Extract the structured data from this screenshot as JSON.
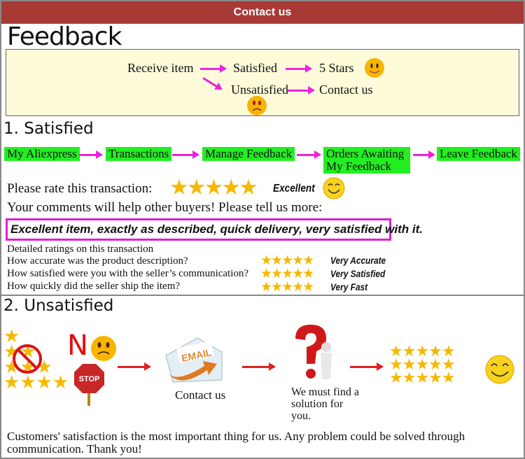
{
  "header": {
    "title": "Contact us"
  },
  "title": "Feedback",
  "flow": {
    "receive": "Receive item",
    "satisfied": "Satisfied",
    "five_stars": "5 Stars",
    "unsatisfied": "Unsatisfied",
    "contact": "Contact us"
  },
  "section1": {
    "title": "1. Satisfied",
    "steps": [
      "My Aliexpress",
      "Transactions",
      "Manage Feedback",
      "Orders Awaiting My Feedback",
      "Leave Feedback"
    ],
    "rate_label": "Please rate this transaction:",
    "rating": 5,
    "rating_text": "Excellent",
    "comments_prompt": "Your comments will help other buyers! Please tell us more:",
    "comment": "Excellent item, exactly as described, quick delivery, very satisfied with it.",
    "detailed_title": "Detailed ratings on this transaction",
    "detailed": [
      {
        "q": "How accurate was the product description?",
        "stars": 5,
        "label": "Very Accurate"
      },
      {
        "q": "How satisfied were you with the seller’s communication?",
        "stars": 5,
        "label": "Very Satisfied"
      },
      {
        "q": "How quickly did the seller ship the item?",
        "stars": 5,
        "label": "Very Fast"
      }
    ]
  },
  "section2": {
    "title": "2. Unsatisfied",
    "no": "N",
    "stop": "STOP",
    "email": "EMAIL",
    "contact": "Contact us",
    "solution": "We must find a solution for you.",
    "footer": "Customers' satisfaction is the most important thing for us. Any problem could be solved through communication. Thank you!"
  },
  "colors": {
    "header": "#a83a35",
    "arrow": "#ee22dd",
    "step_bg": "#22ee22",
    "star": "#f6b800",
    "box_bg": "#fdfbd9"
  }
}
